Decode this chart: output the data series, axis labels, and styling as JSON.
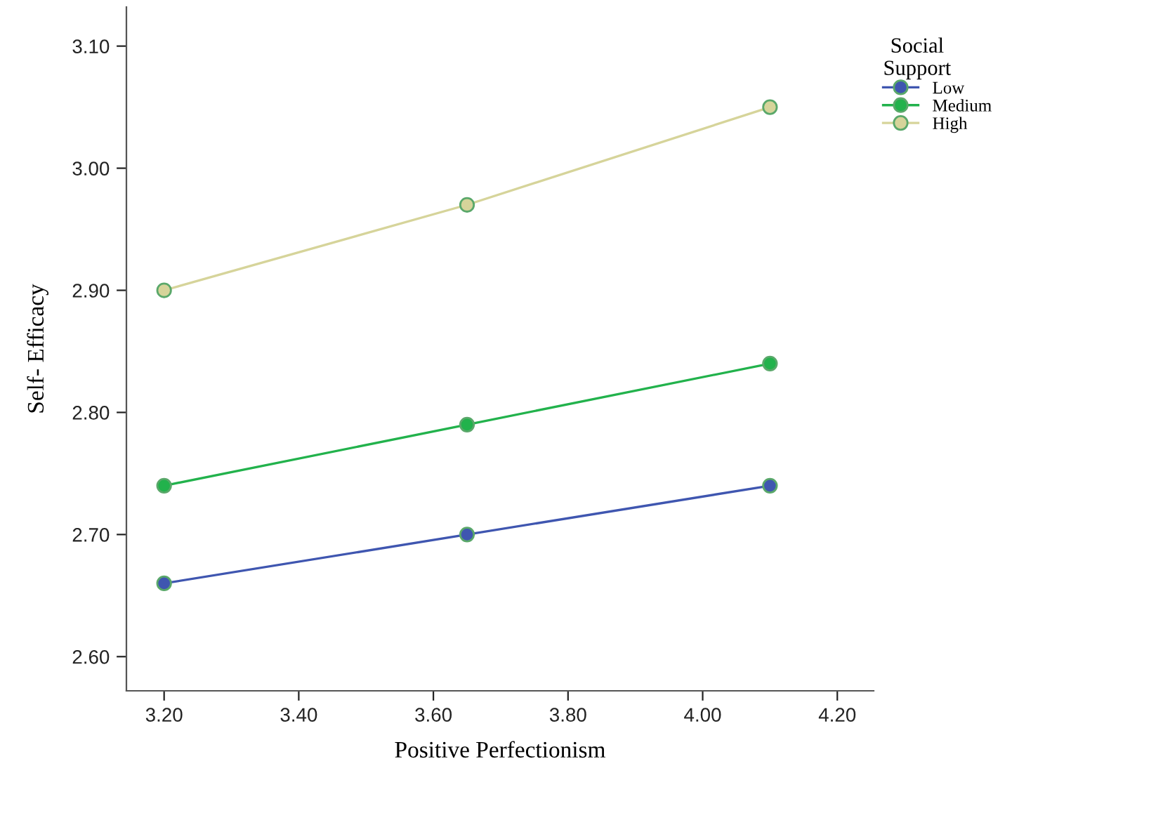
{
  "chart_data": {
    "type": "line",
    "xlabel": "Positive Perfectionism",
    "ylabel": "Self- Efficacy",
    "legend_title": "Social\nSupport",
    "x": [
      3.2,
      3.65,
      4.1
    ],
    "series": [
      {
        "name": "Low",
        "color": "#3f56b0",
        "values": [
          2.66,
          2.7,
          2.74
        ]
      },
      {
        "name": "Medium",
        "color": "#22b24c",
        "values": [
          2.74,
          2.79,
          2.84
        ]
      },
      {
        "name": "High",
        "color": "#d6d49a",
        "values": [
          2.9,
          2.97,
          3.05
        ]
      }
    ],
    "xlim": [
      3.144,
      4.254
    ],
    "ylim": [
      2.572,
      3.132
    ],
    "xticks": [
      {
        "value": 3.2,
        "label": "3.20"
      },
      {
        "value": 3.4,
        "label": "3.40"
      },
      {
        "value": 3.6,
        "label": "3.60"
      },
      {
        "value": 3.8,
        "label": "3.80"
      },
      {
        "value": 4.0,
        "label": "4.00"
      },
      {
        "value": 4.2,
        "label": "4.20"
      }
    ],
    "yticks": [
      {
        "value": 2.6,
        "label": "2.60"
      },
      {
        "value": 2.7,
        "label": "2.70"
      },
      {
        "value": 2.8,
        "label": "2.80"
      },
      {
        "value": 2.9,
        "label": "2.90"
      },
      {
        "value": 3.0,
        "label": "3.00"
      },
      {
        "value": 3.1,
        "label": "3.10"
      }
    ],
    "grid": false,
    "legend": "top right",
    "marker": "circle",
    "line_style": "solid"
  }
}
